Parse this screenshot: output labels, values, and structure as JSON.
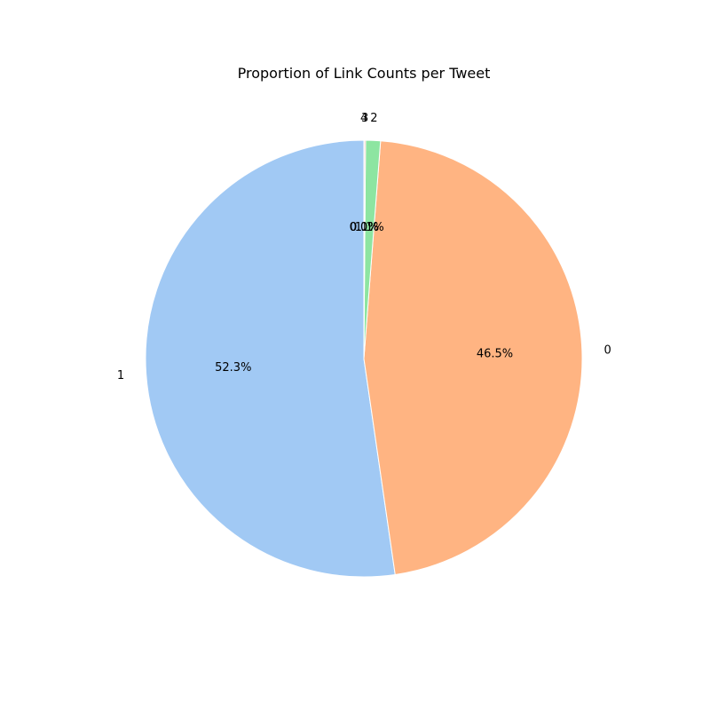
{
  "chart_data": {
    "type": "pie",
    "title": "Proportion of Link Counts per Tweet",
    "start_angle_deg": 90,
    "counterclockwise": true,
    "slices": [
      {
        "label": "1",
        "value": 52.3,
        "pct_label": "52.3%",
        "color": "#a1c9f4"
      },
      {
        "label": "0",
        "value": 46.5,
        "pct_label": "46.5%",
        "color": "#ffb482"
      },
      {
        "label": "2",
        "value": 1.1,
        "pct_label": "1.1%",
        "color": "#8de5a1"
      },
      {
        "label": "3",
        "value": 0.1,
        "pct_label": "0.1%",
        "color": "#ff9f9b"
      },
      {
        "label": "4",
        "value": 0.02,
        "pct_label": "0.0%",
        "color": "#d0bbff"
      }
    ]
  }
}
